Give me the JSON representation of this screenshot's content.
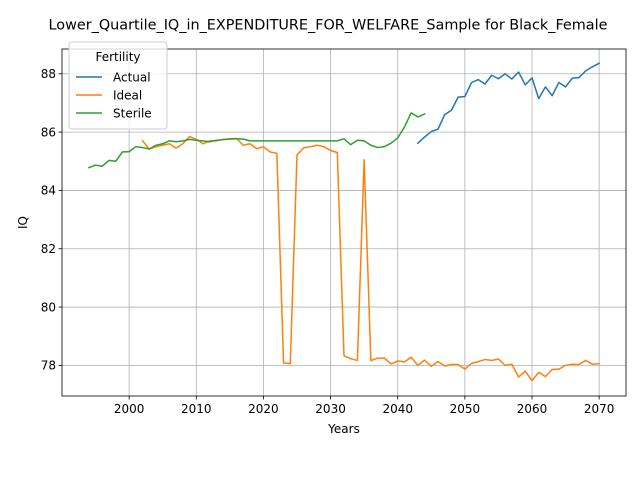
{
  "chart_data": {
    "type": "line",
    "title": "Lower_Quartile_IQ_in_EXPENDITURE_FOR_WELFARE_Sample for Black_Female",
    "xlabel": "Years",
    "ylabel": "IQ",
    "xlim": [
      1990,
      2074
    ],
    "ylim": [
      76.95,
      88.85
    ],
    "xticks": [
      2000,
      2010,
      2020,
      2030,
      2040,
      2050,
      2060,
      2070
    ],
    "yticks": [
      78,
      80,
      82,
      84,
      86,
      88
    ],
    "grid": true,
    "legend": {
      "title": "Fertility",
      "position": "top-left"
    },
    "series": [
      {
        "name": "Actual",
        "color": "#1f77b4",
        "points": [
          [
            2043,
            85.62
          ],
          [
            2044,
            85.83
          ],
          [
            2045,
            86.02
          ],
          [
            2046,
            86.1
          ],
          [
            2047,
            86.6
          ],
          [
            2048,
            86.75
          ],
          [
            2049,
            87.2
          ],
          [
            2050,
            87.22
          ],
          [
            2051,
            87.7
          ],
          [
            2052,
            87.8
          ],
          [
            2053,
            87.65
          ],
          [
            2054,
            87.95
          ],
          [
            2055,
            87.83
          ],
          [
            2056,
            88.0
          ],
          [
            2057,
            87.82
          ],
          [
            2058,
            88.06
          ],
          [
            2059,
            87.62
          ],
          [
            2060,
            87.86
          ],
          [
            2061,
            87.15
          ],
          [
            2062,
            87.55
          ],
          [
            2063,
            87.25
          ],
          [
            2064,
            87.7
          ],
          [
            2065,
            87.55
          ],
          [
            2066,
            87.85
          ],
          [
            2067,
            87.87
          ],
          [
            2068,
            88.1
          ],
          [
            2069,
            88.24
          ],
          [
            2070,
            88.36
          ]
        ]
      },
      {
        "name": "Ideal",
        "color": "#ff7f0e",
        "points": [
          [
            2002,
            85.7
          ],
          [
            2003,
            85.42
          ],
          [
            2004,
            85.5
          ],
          [
            2005,
            85.55
          ],
          [
            2006,
            85.6
          ],
          [
            2007,
            85.45
          ],
          [
            2008,
            85.6
          ],
          [
            2009,
            85.85
          ],
          [
            2010,
            85.75
          ],
          [
            2011,
            85.6
          ],
          [
            2012,
            85.7
          ],
          [
            2013,
            85.7
          ],
          [
            2014,
            85.75
          ],
          [
            2015,
            85.77
          ],
          [
            2016,
            85.78
          ],
          [
            2017,
            85.55
          ],
          [
            2018,
            85.6
          ],
          [
            2019,
            85.43
          ],
          [
            2020,
            85.5
          ],
          [
            2021,
            85.32
          ],
          [
            2022,
            85.27
          ],
          [
            2023,
            78.08
          ],
          [
            2024,
            78.06
          ],
          [
            2025,
            85.22
          ],
          [
            2026,
            85.46
          ],
          [
            2027,
            85.5
          ],
          [
            2028,
            85.55
          ],
          [
            2029,
            85.5
          ],
          [
            2030,
            85.37
          ],
          [
            2031,
            85.3
          ],
          [
            2032,
            78.33
          ],
          [
            2033,
            78.23
          ],
          [
            2034,
            78.17
          ],
          [
            2035,
            85.05
          ],
          [
            2036,
            78.16
          ],
          [
            2037,
            78.25
          ],
          [
            2038,
            78.25
          ],
          [
            2039,
            78.05
          ],
          [
            2040,
            78.15
          ],
          [
            2041,
            78.12
          ],
          [
            2042,
            78.28
          ],
          [
            2043,
            78.0
          ],
          [
            2044,
            78.18
          ],
          [
            2045,
            77.97
          ],
          [
            2046,
            78.13
          ],
          [
            2047,
            77.98
          ],
          [
            2048,
            78.03
          ],
          [
            2049,
            78.03
          ],
          [
            2050,
            77.87
          ],
          [
            2051,
            78.07
          ],
          [
            2052,
            78.13
          ],
          [
            2053,
            78.2
          ],
          [
            2054,
            78.17
          ],
          [
            2055,
            78.22
          ],
          [
            2056,
            78.0
          ],
          [
            2057,
            78.04
          ],
          [
            2058,
            77.6
          ],
          [
            2059,
            77.8
          ],
          [
            2060,
            77.48
          ],
          [
            2061,
            77.76
          ],
          [
            2062,
            77.62
          ],
          [
            2063,
            77.86
          ],
          [
            2064,
            77.87
          ],
          [
            2065,
            78.0
          ],
          [
            2066,
            78.04
          ],
          [
            2067,
            78.03
          ],
          [
            2068,
            78.17
          ],
          [
            2069,
            78.04
          ],
          [
            2070,
            78.06
          ]
        ]
      },
      {
        "name": "Sterile",
        "color": "#2ca02c",
        "points": [
          [
            1994,
            84.78
          ],
          [
            1995,
            84.87
          ],
          [
            1996,
            84.83
          ],
          [
            1997,
            85.03
          ],
          [
            1998,
            85.0
          ],
          [
            1999,
            85.32
          ],
          [
            2000,
            85.33
          ],
          [
            2001,
            85.5
          ],
          [
            2002,
            85.47
          ],
          [
            2003,
            85.42
          ],
          [
            2004,
            85.55
          ],
          [
            2005,
            85.6
          ],
          [
            2006,
            85.7
          ],
          [
            2007,
            85.67
          ],
          [
            2008,
            85.7
          ],
          [
            2009,
            85.75
          ],
          [
            2010,
            85.72
          ],
          [
            2011,
            85.7
          ],
          [
            2012,
            85.67
          ],
          [
            2013,
            85.72
          ],
          [
            2014,
            85.74
          ],
          [
            2015,
            85.76
          ],
          [
            2016,
            85.77
          ],
          [
            2017,
            85.76
          ],
          [
            2018,
            85.7
          ],
          [
            2019,
            85.7
          ],
          [
            2020,
            85.7
          ],
          [
            2021,
            85.7
          ],
          [
            2022,
            85.7
          ],
          [
            2023,
            85.7
          ],
          [
            2024,
            85.7
          ],
          [
            2025,
            85.7
          ],
          [
            2026,
            85.7
          ],
          [
            2027,
            85.7
          ],
          [
            2028,
            85.7
          ],
          [
            2029,
            85.7
          ],
          [
            2030,
            85.7
          ],
          [
            2031,
            85.7
          ],
          [
            2032,
            85.77
          ],
          [
            2033,
            85.57
          ],
          [
            2034,
            85.72
          ],
          [
            2035,
            85.7
          ],
          [
            2036,
            85.55
          ],
          [
            2037,
            85.47
          ],
          [
            2038,
            85.5
          ],
          [
            2039,
            85.62
          ],
          [
            2040,
            85.8
          ],
          [
            2041,
            86.17
          ],
          [
            2042,
            86.66
          ],
          [
            2043,
            86.52
          ],
          [
            2044,
            86.62
          ]
        ]
      }
    ]
  }
}
